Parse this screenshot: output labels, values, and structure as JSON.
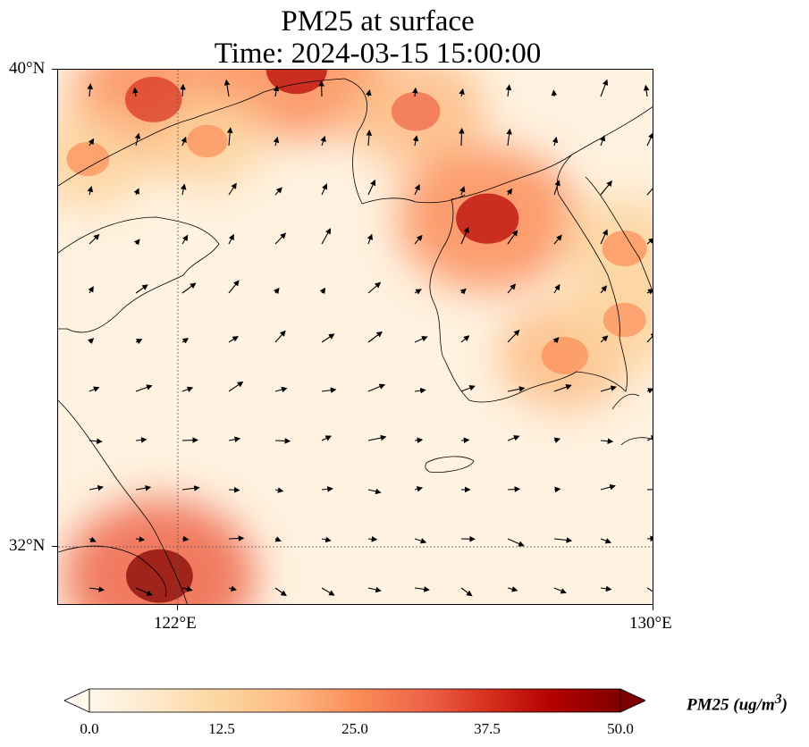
{
  "title": {
    "line1": "PM25 at surface",
    "line2": "Time: 2024-03-15 15:00:00"
  },
  "axes": {
    "lat_labels": [
      "40°N",
      "32°N"
    ],
    "lon_labels": [
      "122°E",
      "130°E"
    ],
    "lat_range": [
      31,
      40
    ],
    "lon_range": [
      120,
      130
    ],
    "gridlines": {
      "lat": [
        32
      ],
      "lon": [
        122
      ]
    }
  },
  "colorbar": {
    "title": "PM25 (ug/m",
    "title_sup": "3",
    "title_end": ")",
    "ticks": [
      "0.0",
      "12.5",
      "25.0",
      "37.5",
      "50.0"
    ],
    "range": [
      0,
      50
    ],
    "colormap": "OrRd",
    "extend": "both"
  },
  "colors": {
    "low": "#fff7ec",
    "mid": "#fdbb84",
    "high": "#d7301f",
    "max": "#7f0000",
    "coast": "#000000"
  },
  "map_data": {
    "hotspots": [
      {
        "lon": 121.7,
        "lat": 31.5,
        "value": 48
      },
      {
        "lon": 121.6,
        "lat": 39.5,
        "value": 38
      },
      {
        "lon": 124.0,
        "lat": 40.0,
        "value": 42
      },
      {
        "lon": 126.0,
        "lat": 39.3,
        "value": 30
      },
      {
        "lon": 127.2,
        "lat": 37.5,
        "value": 44
      },
      {
        "lon": 129.5,
        "lat": 37.0,
        "value": 26
      },
      {
        "lon": 128.5,
        "lat": 35.2,
        "value": 28
      },
      {
        "lon": 129.5,
        "lat": 35.8,
        "value": 24
      },
      {
        "lon": 120.5,
        "lat": 38.5,
        "value": 24
      },
      {
        "lon": 122.5,
        "lat": 38.8,
        "value": 22
      }
    ]
  }
}
